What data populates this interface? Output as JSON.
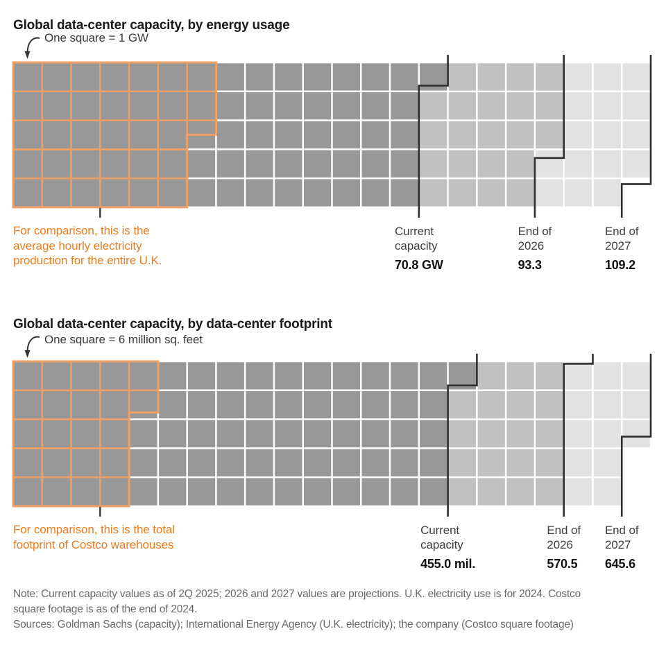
{
  "colors": {
    "current": "#989898",
    "y2026": "#c1c1c1",
    "y2027": "#e2e2e2",
    "line": "#2e2e2e",
    "highlight": "#f0a065",
    "highlight_text": "#e87d23"
  },
  "chart_data": [
    {
      "type": "waffle",
      "title": "Global data-center capacity, by energy usage",
      "unit_note": "One square = 1 GW",
      "per_square": 1,
      "unit": "GW",
      "rows": 5,
      "cols": 22,
      "milestones": [
        {
          "label": "Current\ncapacity",
          "value_label": "70.8 GW",
          "value": 70.8
        },
        {
          "label": "End of\n2026",
          "value_label": "93.3",
          "value": 93.3
        },
        {
          "label": "End of\n2027",
          "value_label": "109.2",
          "value": 109.2
        }
      ],
      "comparison": {
        "value": 32.5,
        "caption": "For comparison, this is the\naverage hourly electricity\nproduction for the entire U.K."
      }
    },
    {
      "type": "waffle",
      "title": "Global data-center capacity, by data-center footprint",
      "unit_note": "One square = 6 million sq. feet",
      "per_square": 6,
      "unit": "million sq. feet",
      "rows": 5,
      "cols": 22,
      "milestones": [
        {
          "label": "Current\ncapacity",
          "value_label": "455.0 mil.",
          "value": 455.0
        },
        {
          "label": "End of\n2026",
          "value_label": "570.5",
          "value": 570.5
        },
        {
          "label": "End of\n2027",
          "value_label": "645.6",
          "value": 645.6
        }
      ],
      "comparison": {
        "value": 130.6,
        "caption": "For comparison, this is the total\nfootprint of Costco warehouses"
      }
    }
  ],
  "footer": {
    "note": "Note: Current capacity values as of 2Q 2025; 2026 and 2027 values are projections. U.K. electricity use is for 2024. Costco\nsquare footage is as of the end of 2024.",
    "sources": "Sources: Goldman Sachs (capacity); International Energy Agency (U.K. electricity); the company (Costco square footage)"
  }
}
